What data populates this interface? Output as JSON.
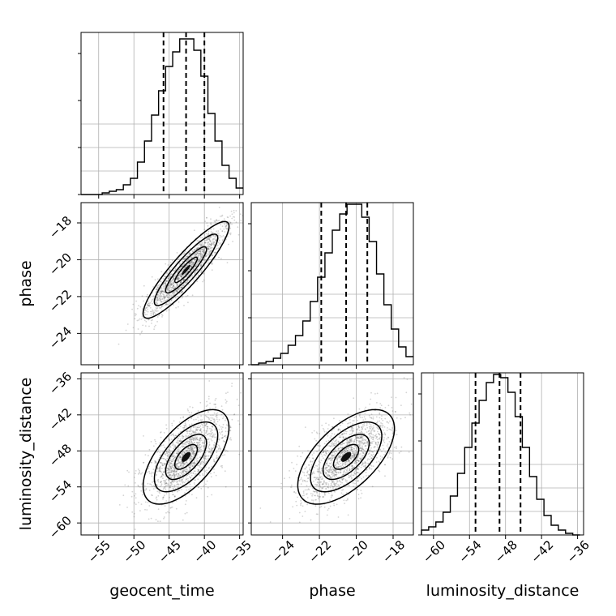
{
  "chart_data": {
    "type": "corner",
    "parameters": [
      "geocent_time",
      "phase",
      "luminosity_distance"
    ],
    "axis_labels": {
      "bottom": [
        "geocent_time",
        "phase",
        "luminosity_distance"
      ],
      "left": [
        "",
        "phase",
        "luminosity_distance"
      ]
    },
    "ranges": {
      "geocent_time": [
        -57.5,
        -34.5
      ],
      "phase": [
        -25.7,
        -16.9
      ],
      "luminosity_distance": [
        -62.0,
        -35.0
      ]
    },
    "ticks": {
      "geocent_time": [
        -55,
        -50,
        -45,
        -40,
        -35
      ],
      "phase": [
        -24,
        -22,
        -20,
        -18
      ],
      "luminosity_distance_bottom": [
        -60,
        -54,
        -48,
        -42,
        -36
      ],
      "luminosity_distance_left": [
        -60,
        -54,
        -48,
        -42,
        -36
      ]
    },
    "tick_labels": {
      "geocent_time": [
        "−55",
        "−50",
        "−45",
        "−40",
        "−35"
      ],
      "phase": [
        "−24",
        "−22",
        "−20",
        "−18"
      ],
      "luminosity_distance": [
        "−60",
        "−54",
        "−48",
        "−42",
        "−36"
      ]
    },
    "quantiles": {
      "geocent_time": [
        -45.8,
        -42.6,
        -40.0
      ],
      "phase": [
        -21.9,
        -20.55,
        -19.4
      ],
      "luminosity_distance": [
        -53.0,
        -49.0,
        -45.5
      ]
    },
    "histograms": {
      "geocent_time": {
        "edges": [
          -57.5,
          -56.5,
          -55.5,
          -54.5,
          -53.5,
          -52.5,
          -51.5,
          -50.5,
          -49.5,
          -48.5,
          -47.5,
          -46.5,
          -45.5,
          -44.5,
          -43.5,
          -42.5,
          -41.5,
          -40.5,
          -39.5,
          -38.5,
          -37.5,
          -36.5,
          -35.5,
          -34.5
        ],
        "counts": [
          0,
          0,
          0,
          1,
          2,
          3,
          6,
          10,
          20,
          33,
          49,
          64,
          79,
          88,
          96,
          96,
          89,
          73,
          50,
          33,
          18,
          10,
          4
        ]
      },
      "phase": {
        "edges": [
          -25.7,
          -25.3,
          -24.9,
          -24.5,
          -24.1,
          -23.7,
          -23.3,
          -22.9,
          -22.5,
          -22.1,
          -21.7,
          -21.3,
          -20.9,
          -20.5,
          -20.1,
          -19.7,
          -19.3,
          -18.9,
          -18.5,
          -18.1,
          -17.7,
          -17.3,
          -16.9
        ],
        "counts": [
          0,
          1,
          2,
          4,
          7,
          12,
          18,
          27,
          39,
          54,
          69,
          83,
          93,
          99,
          99,
          91,
          76,
          56,
          37,
          22,
          11,
          5
        ]
      },
      "luminosity_distance": {
        "edges": [
          -62.0,
          -60.8,
          -59.6,
          -58.4,
          -57.2,
          -56.0,
          -54.8,
          -53.6,
          -52.4,
          -51.2,
          -50.0,
          -48.8,
          -47.6,
          -46.4,
          -45.2,
          -44.0,
          -42.8,
          -41.6,
          -40.4,
          -39.2,
          -38.0,
          -36.8,
          -35.6
        ],
        "counts": [
          3,
          5,
          8,
          14,
          24,
          38,
          54,
          69,
          83,
          94,
          99,
          97,
          88,
          73,
          54,
          36,
          22,
          12,
          6,
          3,
          1,
          0
        ]
      }
    },
    "correlations": {
      "geocent_time|phase": 0.9,
      "geocent_time|luminosity_distance": 0.62,
      "phase|luminosity_distance": 0.6
    },
    "grid": true,
    "quantile_line_style": "dashed"
  }
}
